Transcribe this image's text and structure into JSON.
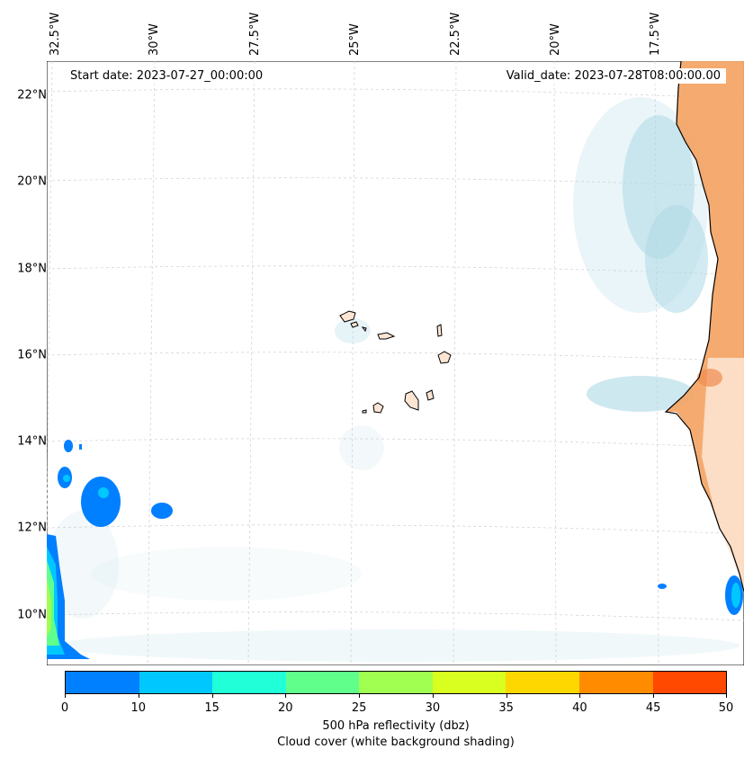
{
  "map": {
    "start_date": "Start date: 2023-07-27_00:00:00",
    "valid_date": "Valid_date: 2023-07-28T08:00:00.00",
    "longitude_labels": [
      "32.5°W",
      "30°W",
      "27.5°W",
      "25°W",
      "22.5°W",
      "20°W",
      "17.5°W"
    ],
    "latitude_labels": [
      "22°N",
      "20°N",
      "18°N",
      "16°N",
      "14°N",
      "12°N",
      "10°N"
    ],
    "colors": {
      "land": "#f4a261",
      "cloud": "#add8e6",
      "coastline": "#000000",
      "gridline": "#c8c8c8"
    }
  },
  "colorbar": {
    "ticks": [
      "0",
      "10",
      "15",
      "20",
      "25",
      "30",
      "35",
      "40",
      "45",
      "50"
    ],
    "colors": [
      "#0080ff",
      "#00c8ff",
      "#20ffd8",
      "#60ff8c",
      "#a0ff50",
      "#d8ff20",
      "#ffd700",
      "#ff8c00",
      "#ff4800"
    ],
    "label": "500 hPa reflectivity (dbz)",
    "sublabel": "Cloud cover (white background shading)"
  }
}
